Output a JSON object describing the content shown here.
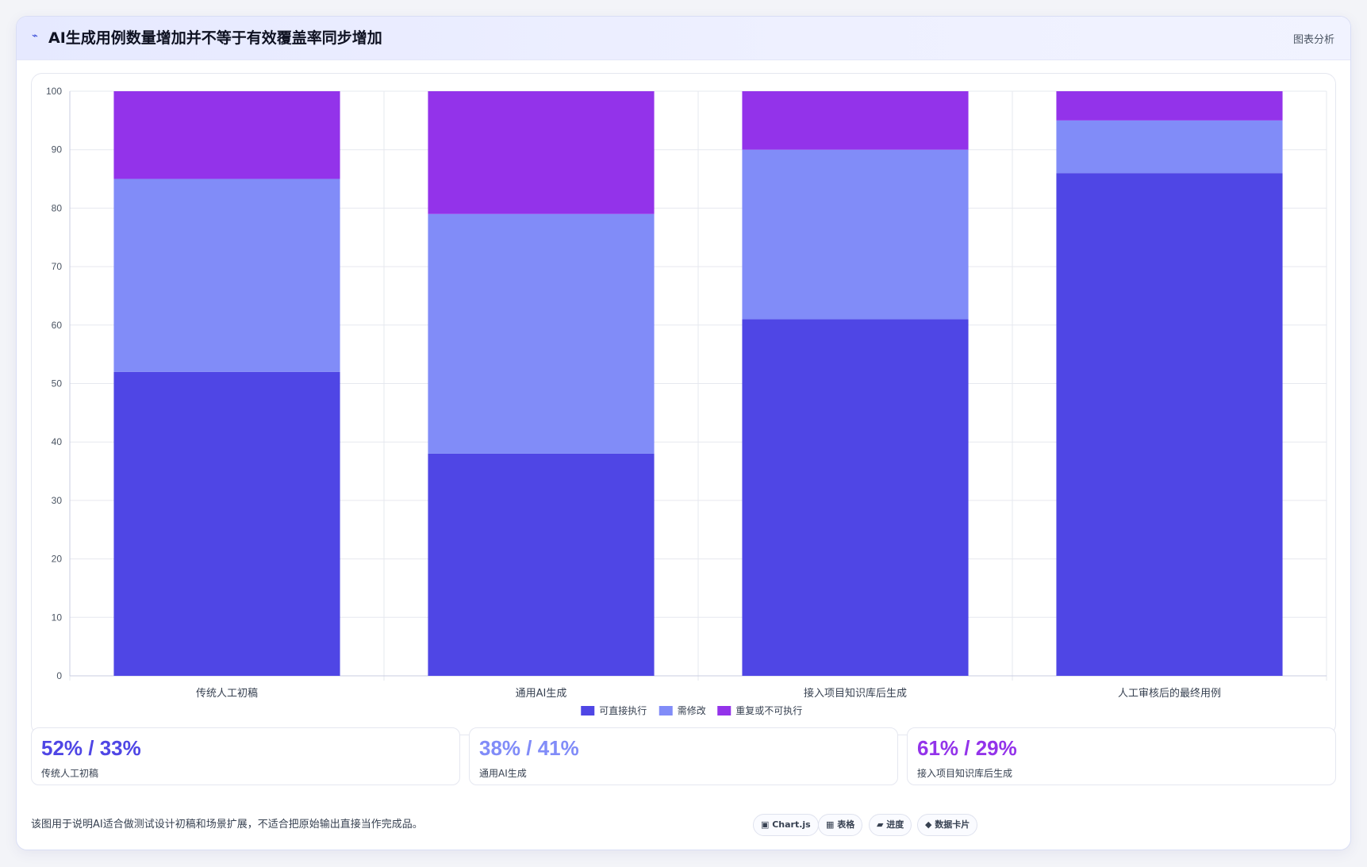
{
  "header": {
    "icon": "⌁",
    "title": "AI生成用例数量增加并不等于有效覆盖率同步增加",
    "tag": "图表分析"
  },
  "colors": {
    "direct": "#4f46e5",
    "modify": "#818cf8",
    "invalid": "#9333ea"
  },
  "chart_data": {
    "type": "bar",
    "stacked": true,
    "categories": [
      "传统人工初稿",
      "通用AI生成",
      "接入项目知识库后生成",
      "人工审核后的最终用例"
    ],
    "series": [
      {
        "name": "可直接执行",
        "color": "#4f46e5",
        "values": [
          52,
          38,
          61,
          86
        ]
      },
      {
        "name": "需修改",
        "color": "#818cf8",
        "values": [
          33,
          41,
          29,
          9
        ]
      },
      {
        "name": "重复或不可执行",
        "color": "#9333ea",
        "values": [
          15,
          21,
          10,
          5
        ]
      }
    ],
    "ylim": [
      0,
      100
    ],
    "yticks": [
      0,
      10,
      20,
      30,
      40,
      50,
      60,
      70,
      80,
      90,
      100
    ],
    "grid": true,
    "legend": "bottom-center"
  },
  "stats": [
    {
      "value": "52% / 33%",
      "label": "传统人工初稿",
      "color": "#4f46e5"
    },
    {
      "value": "38% / 41%",
      "label": "通用AI生成",
      "color": "#818cf8"
    },
    {
      "value": "61% / 29%",
      "label": "接入项目知识库后生成",
      "color": "#9333ea"
    }
  ],
  "note": "该图用于说明AI适合做测试设计初稿和场景扩展，不适合把原始输出直接当作完成品。",
  "pills": [
    {
      "label": "▣ Chart.js"
    },
    {
      "label": "▦ 表格"
    },
    {
      "label": "▰ 进度"
    },
    {
      "label": "◆ 数据卡片"
    }
  ]
}
